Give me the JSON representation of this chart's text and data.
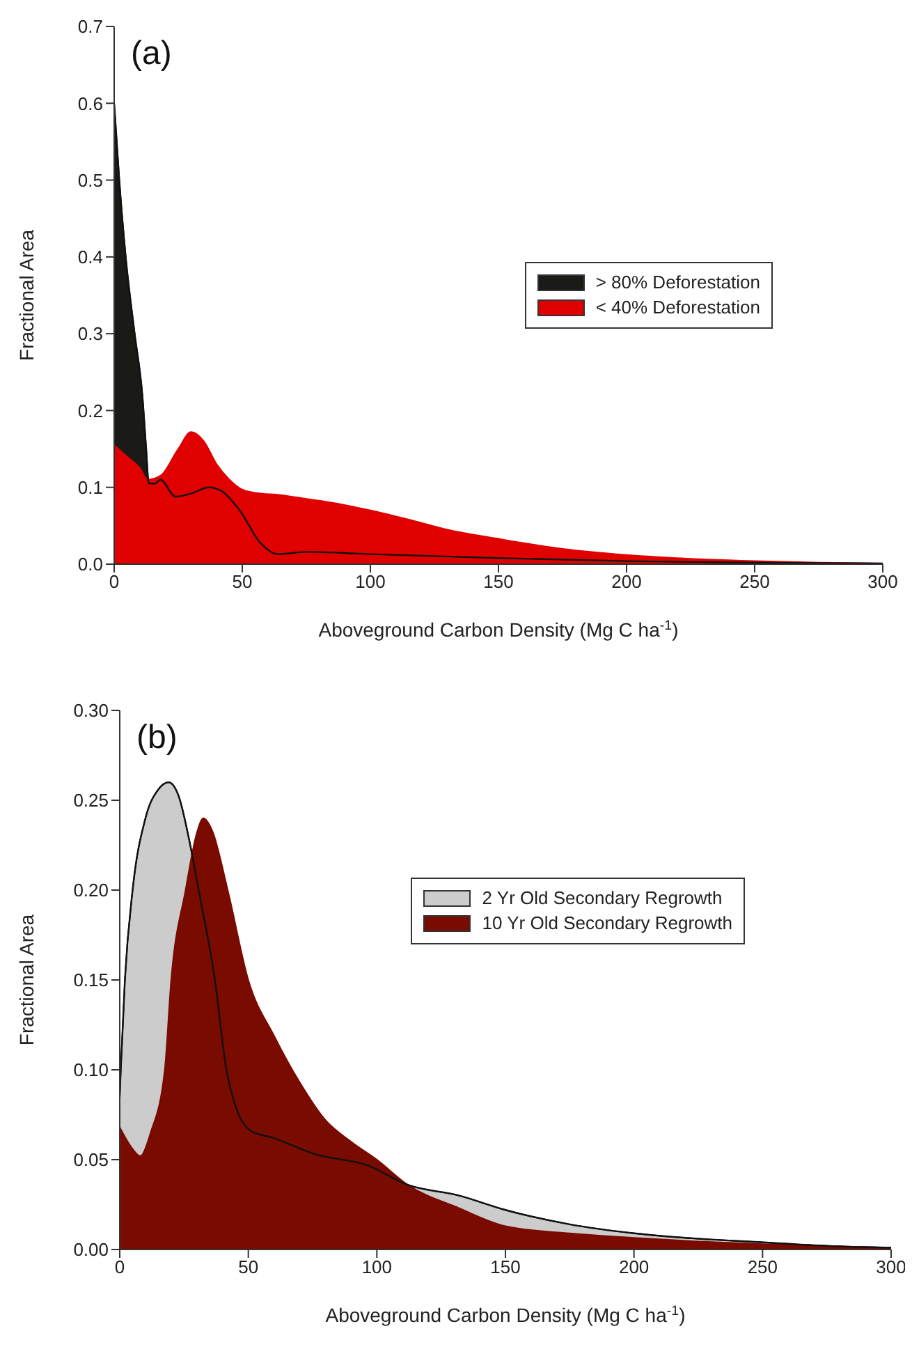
{
  "chart_data": [
    {
      "type": "area",
      "annotations": [
        "(a)"
      ],
      "xlabel": "Aboveground Carbon Density (Mg C ha$^{-1}$)",
      "ylabel": "Fractional Area",
      "xlim": [
        0,
        300
      ],
      "xticks": [
        0,
        50,
        100,
        150,
        200,
        250,
        300
      ],
      "ylim": [
        0,
        0.7
      ],
      "yticks": [
        {
          "value": 0,
          "label": "0.0"
        },
        0.1,
        0.2,
        0.3,
        0.4,
        0.5,
        0.6,
        0.7
      ],
      "legend": "right",
      "series": [
        {
          "name": "> 80% Deforestation",
          "color": "#1a1a17",
          "x": [
            0,
            2,
            4.5,
            8,
            11,
            12.5,
            13.5,
            16,
            18,
            24,
            30,
            37,
            42,
            49,
            57,
            64,
            75,
            100,
            150,
            200,
            250,
            300
          ],
          "values": [
            0.6,
            0.5,
            0.4,
            0.3,
            0.22,
            0.15,
            0.105,
            0.105,
            0.11,
            0.088,
            0.092,
            0.1,
            0.095,
            0.07,
            0.028,
            0.013,
            0.016,
            0.013,
            0.008,
            0.004,
            0.002,
            0.001
          ]
        },
        {
          "name": "< 40% Deforestation",
          "color": "#e00000",
          "x": [
            0,
            5,
            10,
            13,
            18,
            25,
            30,
            35,
            40,
            45,
            50,
            55,
            65,
            75,
            85,
            100,
            115,
            130,
            150,
            175,
            200,
            225,
            250,
            275,
            300
          ],
          "values": [
            0.155,
            0.14,
            0.125,
            0.11,
            0.115,
            0.15,
            0.172,
            0.16,
            0.13,
            0.11,
            0.097,
            0.093,
            0.09,
            0.085,
            0.08,
            0.07,
            0.058,
            0.045,
            0.033,
            0.02,
            0.012,
            0.007,
            0.004,
            0.002,
            0.001
          ]
        }
      ]
    },
    {
      "type": "area",
      "annotations": [
        "(b)"
      ],
      "xlabel": "Aboveground Carbon Density (Mg C ha$^{-1}$)",
      "ylabel": "Fractional Area",
      "xlim": [
        0,
        300
      ],
      "xticks": [
        0,
        50,
        100,
        150,
        200,
        250,
        300
      ],
      "ylim": [
        0,
        0.3
      ],
      "yticks": [
        {
          "value": 0,
          "label": "0.00"
        },
        0.05,
        {
          "value": 0.1,
          "label": "0.10"
        },
        0.15,
        {
          "value": 0.2,
          "label": "0.20"
        },
        0.25,
        {
          "value": 0.3,
          "label": "0.30"
        }
      ],
      "legend": "right",
      "series": [
        {
          "name": "2 Yr Old Secondary Regrowth",
          "color": "#cccccc",
          "x": [
            0,
            0.4,
            2,
            5,
            10,
            15,
            19,
            23,
            27,
            30.7,
            37,
            41.5,
            45,
            51,
            60,
            76,
            96,
            112,
            132,
            150,
            175,
            200,
            225,
            250,
            275,
            300
          ],
          "values": [
            0.085,
            0.1,
            0.15,
            0.2,
            0.24,
            0.256,
            0.26,
            0.252,
            0.228,
            0.2,
            0.15,
            0.1,
            0.08,
            0.066,
            0.062,
            0.053,
            0.047,
            0.036,
            0.03,
            0.022,
            0.014,
            0.009,
            0.006,
            0.004,
            0.002,
            0.001
          ]
        },
        {
          "name": "10 Yr Old Secondary Regrowth",
          "color": "#7a0b00",
          "x": [
            0,
            4,
            8,
            12,
            17.5,
            20,
            25.6,
            30,
            32.5,
            36,
            42,
            50,
            60,
            70,
            80,
            90,
            100,
            112,
            132,
            150,
            175,
            200,
            225,
            250,
            275,
            300
          ],
          "values": [
            0.068,
            0.058,
            0.052,
            0.065,
            0.1,
            0.15,
            0.2,
            0.232,
            0.24,
            0.233,
            0.2,
            0.15,
            0.119,
            0.093,
            0.072,
            0.06,
            0.05,
            0.036,
            0.023,
            0.013,
            0.009,
            0.0065,
            0.0045,
            0.003,
            0.002,
            0.001
          ]
        }
      ]
    }
  ]
}
